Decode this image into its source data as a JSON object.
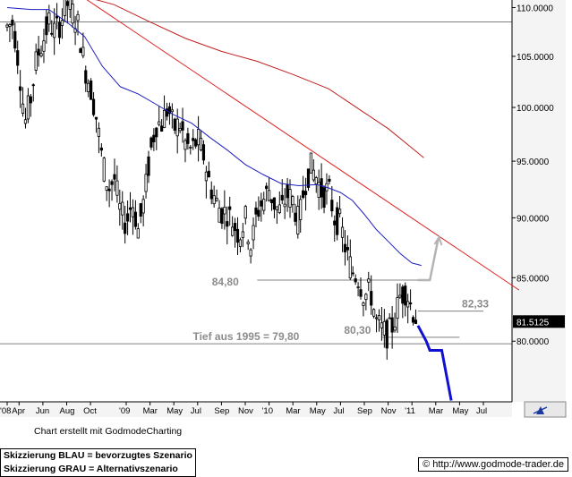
{
  "credit": "Chart erstellt mit GodmodeCharting",
  "notes": {
    "line1": "Skizzierung BLAU = bevorzugtes Szenario",
    "line2": "Skizzierung GRAU = Alternativszenario"
  },
  "url": "http://www.godmode-trader.de",
  "icons": {
    "copyright": "copyright-icon",
    "chart_tool": "chart-tool-icon"
  },
  "colors": {
    "candles": "#000000",
    "moving_avg_short": "#1f1fbf",
    "moving_avg_long": "#c02020",
    "trendline": "#e02020",
    "level_lines": "#808080",
    "scenario_blue": "#1010d0",
    "scenario_gray": "#b4b4b4",
    "annotation_text": "#8c8c8c"
  },
  "chart_data": {
    "type": "candlestick",
    "y_scale": "log",
    "ylim": [
      75.5,
      110.8
    ],
    "y_ticks": [
      80,
      85,
      90,
      95,
      100,
      105,
      110
    ],
    "y_tick_labels": [
      "80.0000",
      "85.0000",
      "90.0000",
      "95.0000",
      "100.0000",
      "105.0000",
      "110.0000"
    ],
    "xlim": [
      0,
      43
    ],
    "x_ticks": [
      {
        "label": "'08",
        "x": 0
      },
      {
        "label": "Apr",
        "x": 1
      },
      {
        "label": "Jun",
        "x": 3
      },
      {
        "label": "Aug",
        "x": 5
      },
      {
        "label": "Oct",
        "x": 7
      },
      {
        "label": "'09",
        "x": 10
      },
      {
        "label": "Mar",
        "x": 12
      },
      {
        "label": "May",
        "x": 14
      },
      {
        "label": "Jul",
        "x": 16
      },
      {
        "label": "Sep",
        "x": 18
      },
      {
        "label": "Nov",
        "x": 20
      },
      {
        "label": "'10",
        "x": 22
      },
      {
        "label": "Mar",
        "x": 24
      },
      {
        "label": "May",
        "x": 26
      },
      {
        "label": "Jul",
        "x": 28
      },
      {
        "label": "Sep",
        "x": 30
      },
      {
        "label": "Nov",
        "x": 32
      },
      {
        "label": "'11",
        "x": 34
      },
      {
        "label": "Mar",
        "x": 36
      },
      {
        "label": "May",
        "x": 38
      },
      {
        "label": "Jul",
        "x": 40
      }
    ],
    "last_value": "81.5125",
    "price": [
      [
        0,
        108
      ],
      [
        0.5,
        108.5
      ],
      [
        1,
        104
      ],
      [
        1.5,
        98.5
      ],
      [
        2,
        101
      ],
      [
        2.5,
        105
      ],
      [
        3,
        106.5
      ],
      [
        3.5,
        108.5
      ],
      [
        4,
        107.5
      ],
      [
        4.5,
        108.5
      ],
      [
        5,
        110.5
      ],
      [
        5.5,
        109.5
      ],
      [
        6,
        108
      ],
      [
        6.5,
        104
      ],
      [
        7,
        102
      ],
      [
        7.5,
        99
      ],
      [
        8,
        95
      ],
      [
        8.5,
        92.5
      ],
      [
        9,
        93.5
      ],
      [
        9.5,
        90.5
      ],
      [
        10,
        89.5
      ],
      [
        10.5,
        91.5
      ],
      [
        11,
        89
      ],
      [
        11.5,
        91.5
      ],
      [
        12,
        95.5
      ],
      [
        12.5,
        98.5
      ],
      [
        13,
        98.5
      ],
      [
        13.5,
        100
      ],
      [
        14,
        98
      ],
      [
        14.5,
        98.5
      ],
      [
        15,
        96.5
      ],
      [
        15.5,
        96
      ],
      [
        16,
        97
      ],
      [
        16.5,
        95.5
      ],
      [
        17,
        93
      ],
      [
        17.5,
        91.5
      ],
      [
        18,
        90.5
      ],
      [
        18.5,
        90.5
      ],
      [
        19,
        89.5
      ],
      [
        19.5,
        88.5
      ],
      [
        20,
        90
      ],
      [
        20.5,
        87.5
      ],
      [
        21,
        90.5
      ],
      [
        21.5,
        91.5
      ],
      [
        22,
        92.5
      ],
      [
        22.5,
        91
      ],
      [
        23,
        90.5
      ],
      [
        23.5,
        92
      ],
      [
        24,
        91.5
      ],
      [
        24.5,
        89.5
      ],
      [
        25,
        93
      ],
      [
        25.5,
        94.5
      ],
      [
        26,
        93.5
      ],
      [
        26.5,
        92
      ],
      [
        27,
        92.5
      ],
      [
        27.5,
        90
      ],
      [
        28,
        89.5
      ],
      [
        28.5,
        87
      ],
      [
        29,
        85.5
      ],
      [
        29.5,
        85
      ],
      [
        30,
        83.5
      ],
      [
        30.5,
        84
      ],
      [
        31,
        81.5
      ],
      [
        31.5,
        80.8
      ],
      [
        32,
        80.5
      ],
      [
        32.5,
        81.5
      ],
      [
        33,
        83.5
      ],
      [
        33.5,
        84
      ],
      [
        34,
        82.5
      ],
      [
        34.5,
        81.5
      ]
    ],
    "series": [
      {
        "name": "",
        "values": [
          [
            0,
            110
          ],
          [
            2,
            109.8
          ],
          [
            3.5,
            109.8
          ],
          [
            5,
            108.5
          ],
          [
            6.5,
            107
          ],
          [
            8,
            104
          ],
          [
            9.5,
            102
          ],
          [
            11,
            101.3
          ],
          [
            12.5,
            100.3
          ],
          [
            14,
            99.3
          ],
          [
            15.5,
            98.5
          ],
          [
            17,
            97.2
          ],
          [
            18.5,
            96
          ],
          [
            20,
            94.7
          ],
          [
            21.5,
            93.8
          ],
          [
            23,
            93
          ],
          [
            24.5,
            92.8
          ],
          [
            26,
            92.9
          ],
          [
            27,
            92.6
          ],
          [
            28,
            92.2
          ],
          [
            29,
            91.5
          ],
          [
            30,
            90.3
          ],
          [
            31,
            89
          ],
          [
            32,
            88
          ],
          [
            33,
            87
          ],
          [
            34,
            86.2
          ],
          [
            34.8,
            86
          ]
        ]
      },
      {
        "name": "",
        "values": [
          [
            7,
            111
          ],
          [
            9,
            110.3
          ],
          [
            12,
            108.5
          ],
          [
            15,
            106.8
          ],
          [
            18,
            105.5
          ],
          [
            21,
            104.5
          ],
          [
            24,
            103.2
          ],
          [
            27,
            101.8
          ],
          [
            30,
            99.5
          ],
          [
            32,
            98
          ],
          [
            34,
            96.2
          ],
          [
            35,
            95.3
          ]
        ]
      }
    ],
    "trendline": [
      [
        3,
        114
      ],
      [
        43,
        84
      ]
    ],
    "levels": [
      {
        "label": "84,80",
        "value": 84.8
      },
      {
        "label": "82,33",
        "value": 82.33
      },
      {
        "label": "80,30",
        "value": 80.3
      },
      {
        "label": "Tief aus 1995 = 79,80",
        "value": 79.8
      },
      {
        "label": "",
        "value": 108.5
      }
    ],
    "scenario_blue": [
      [
        34.5,
        81.2
      ],
      [
        35.2,
        80
      ],
      [
        35.5,
        79.3
      ],
      [
        36.5,
        79.3
      ],
      [
        37.3,
        75.6
      ]
    ],
    "scenario_gray": [
      [
        34.5,
        84.8
      ],
      [
        35.5,
        84.8
      ],
      [
        36.2,
        88.2
      ]
    ]
  }
}
